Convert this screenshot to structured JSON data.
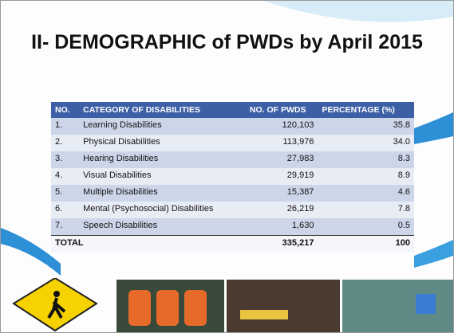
{
  "title": "II- DEMOGRAPHIC of PWDs by April 2015",
  "table": {
    "header": [
      "NO.",
      "CATEGORY OF DISABILITIES",
      "NO. OF PWDS",
      "PERCENTAGE (%)"
    ],
    "rows": [
      [
        "1.",
        "Learning Disabilities",
        "120,103",
        "35.8"
      ],
      [
        "2.",
        "Physical Disabilities",
        "113,976",
        "34.0"
      ],
      [
        "3.",
        "Hearing Disabilities",
        "27,983",
        "8.3"
      ],
      [
        "4.",
        "Visual Disabilities",
        "29,919",
        "8.9"
      ],
      [
        "5.",
        "Multiple Disabilities",
        "15,387",
        "4.6"
      ],
      [
        "6.",
        "Mental (Psychosocial) Disabilities",
        "26,219",
        "7.8"
      ],
      [
        "7.",
        "Speech Disabilities",
        "1,630",
        "0.5"
      ]
    ],
    "total": [
      "TOTAL",
      "335,217",
      "100"
    ]
  }
}
